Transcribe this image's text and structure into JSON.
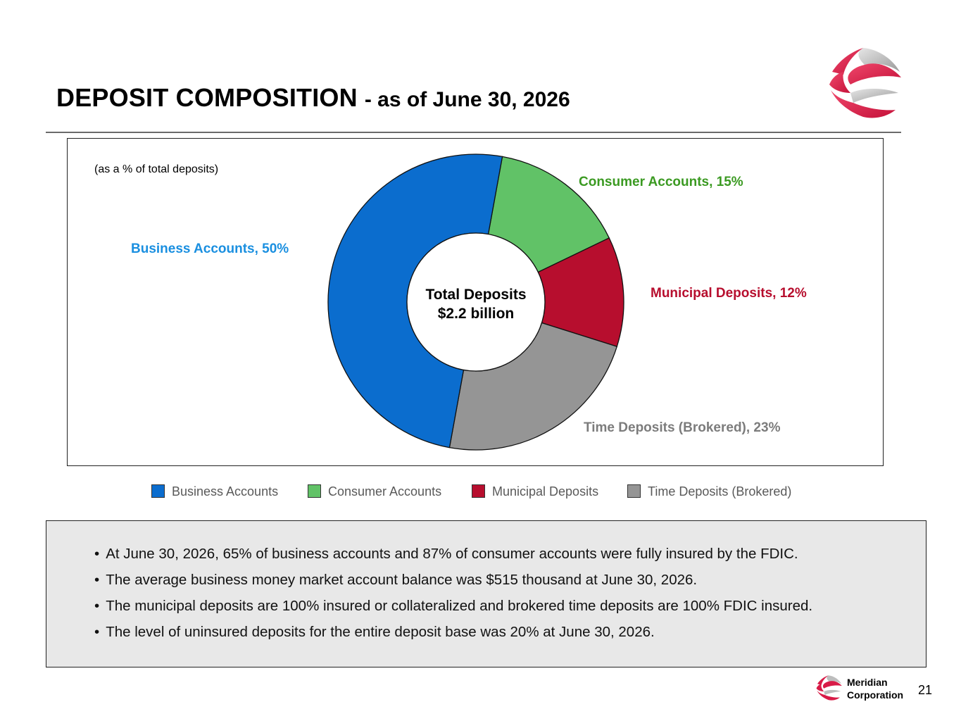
{
  "header": {
    "title": "DEPOSIT COMPOSITION",
    "subtitle": "- as of June 30, 2026"
  },
  "chart_data": {
    "type": "pie",
    "note": "(as a % of total deposits)",
    "center_text": [
      "Total Deposits",
      "$2.2 billion"
    ],
    "slices": [
      {
        "name": "Business Accounts",
        "value": 50,
        "label": "Business Accounts, 50%",
        "color": "#0b6dce",
        "label_color": "#1a8fe0"
      },
      {
        "name": "Consumer Accounts",
        "value": 15,
        "label": "Consumer Accounts, 15%",
        "color": "#61c267",
        "label_color": "#3b9a22"
      },
      {
        "name": "Municipal Deposits",
        "value": 12,
        "label": "Municipal Deposits, 12%",
        "color": "#b70e2e",
        "label_color": "#b70e2e"
      },
      {
        "name": "Time Deposits (Brokered)",
        "value": 23,
        "label": "Time Deposits (Brokered), 23%",
        "color": "#959595",
        "label_color": "#7c7c7c"
      }
    ],
    "legend_position": "bottom",
    "grid": false
  },
  "notes": [
    "At June 30, 2026, 65% of business accounts and 87% of consumer accounts were fully insured by the FDIC.",
    "The average business money market account balance was $515 thousand at June 30, 2026.",
    "The municipal deposits are 100% insured or collateralized and brokered time deposits are 100% FDIC insured.",
    "The level of uninsured deposits for the entire deposit base was 20% at June 30, 2026."
  ],
  "footer": {
    "company_line1": "Meridian",
    "company_line2": "Corporation",
    "page_number": "21"
  },
  "icons": {
    "brand_logo": "swirl-sphere-logo-icon"
  }
}
